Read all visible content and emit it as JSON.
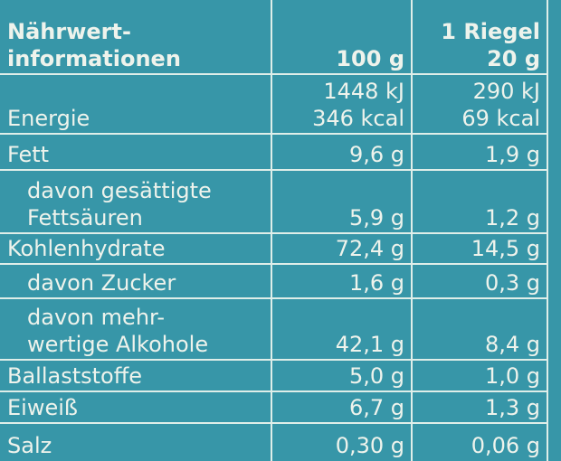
{
  "table": {
    "header": {
      "label": [
        "Nährwert-",
        "informationen"
      ],
      "col1": [
        "100 g"
      ],
      "col2": [
        "1 Riegel",
        "20 g"
      ]
    },
    "rows": [
      {
        "label": [
          "Energie"
        ],
        "col1": [
          "1448 kJ",
          "346 kcal"
        ],
        "col2": [
          "290 kJ",
          "69 kcal"
        ]
      },
      {
        "label": [
          "Fett"
        ],
        "col1": [
          "9,6 g"
        ],
        "col2": [
          "1,9 g"
        ]
      },
      {
        "label": [
          "davon gesättigte",
          "Fettsäuren"
        ],
        "col1": [
          "5,9 g"
        ],
        "col2": [
          "1,2 g"
        ]
      },
      {
        "label": [
          "Kohlenhydrate"
        ],
        "col1": [
          "72,4 g"
        ],
        "col2": [
          "14,5 g"
        ]
      },
      {
        "label": [
          "davon Zucker"
        ],
        "col1": [
          "1,6 g"
        ],
        "col2": [
          "0,3 g"
        ]
      },
      {
        "label": [
          "davon mehr-",
          "wertige Alkohole"
        ],
        "col1": [
          "42,1 g"
        ],
        "col2": [
          "8,4 g"
        ]
      },
      {
        "label": [
          "Ballaststoffe"
        ],
        "col1": [
          "5,0 g"
        ],
        "col2": [
          "1,0 g"
        ]
      },
      {
        "label": [
          "Eiweiß"
        ],
        "col1": [
          "6,7 g"
        ],
        "col2": [
          "1,3 g"
        ]
      },
      {
        "label": [
          "Salz"
        ],
        "col1": [
          "0,30 g"
        ],
        "col2": [
          "0,06 g"
        ]
      }
    ]
  }
}
